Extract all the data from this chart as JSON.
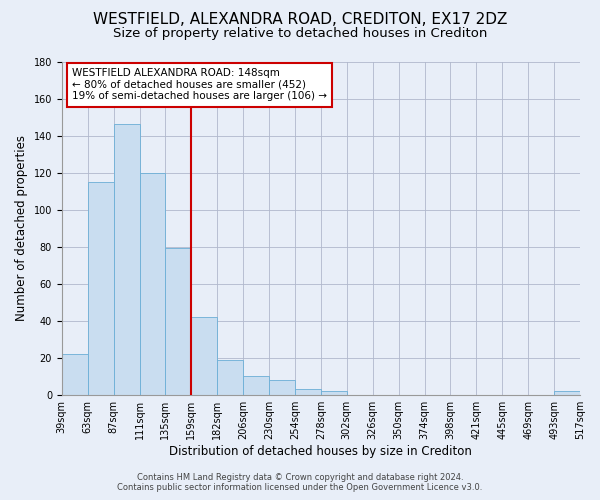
{
  "title": "WESTFIELD, ALEXANDRA ROAD, CREDITON, EX17 2DZ",
  "subtitle": "Size of property relative to detached houses in Crediton",
  "xlabel": "Distribution of detached houses by size in Crediton",
  "ylabel": "Number of detached properties",
  "bar_values": [
    22,
    115,
    146,
    120,
    79,
    42,
    19,
    10,
    8,
    3,
    2,
    0,
    0,
    0,
    0,
    0,
    0,
    0,
    0,
    2
  ],
  "bar_labels": [
    "39sqm",
    "63sqm",
    "87sqm",
    "111sqm",
    "135sqm",
    "159sqm",
    "182sqm",
    "206sqm",
    "230sqm",
    "254sqm",
    "278sqm",
    "302sqm",
    "326sqm",
    "350sqm",
    "374sqm",
    "398sqm",
    "421sqm",
    "445sqm",
    "469sqm",
    "493sqm",
    "517sqm"
  ],
  "bar_color": "#c9ddf0",
  "bar_edge_color": "#6baed6",
  "vline_color": "#cc0000",
  "ylim": [
    0,
    180
  ],
  "yticks": [
    0,
    20,
    40,
    60,
    80,
    100,
    120,
    140,
    160,
    180
  ],
  "annotation_title": "WESTFIELD ALEXANDRA ROAD: 148sqm",
  "annotation_line1": "← 80% of detached houses are smaller (452)",
  "annotation_line2": "19% of semi-detached houses are larger (106) →",
  "footer1": "Contains HM Land Registry data © Crown copyright and database right 2024.",
  "footer2": "Contains public sector information licensed under the Open Government Licence v3.0.",
  "background_color": "#e8eef8",
  "plot_bg_color": "#e8eef8",
  "title_fontsize": 11,
  "subtitle_fontsize": 9.5,
  "tick_fontsize": 7,
  "ylabel_fontsize": 8.5,
  "xlabel_fontsize": 8.5,
  "footer_fontsize": 6,
  "annotation_fontsize": 7.5
}
